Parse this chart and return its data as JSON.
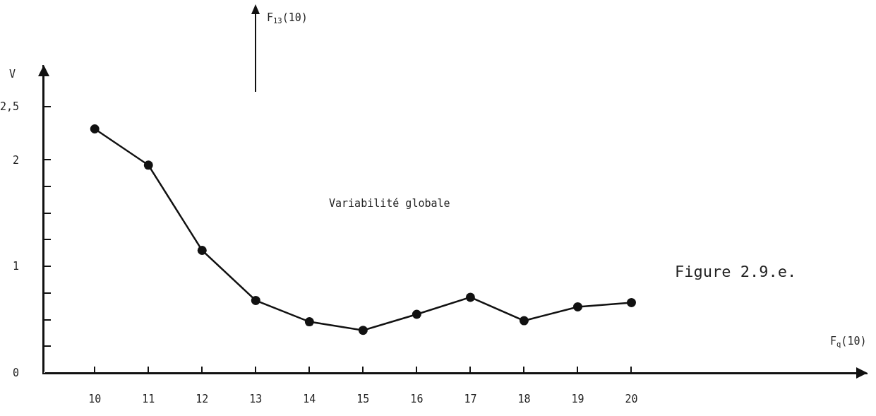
{
  "chart_data": {
    "type": "line",
    "x": [
      10,
      11,
      12,
      13,
      14,
      15,
      16,
      17,
      18,
      19,
      20
    ],
    "values": [
      2.29,
      1.95,
      1.15,
      0.68,
      0.48,
      0.4,
      0.55,
      0.71,
      0.49,
      0.62,
      0.66
    ],
    "color": "#111111",
    "marker": "circle",
    "line_style": "solid",
    "xlabel": "F$_{q}$(10)",
    "ylabel": "V",
    "xlim": [
      9.05,
      24.4
    ],
    "ylim": [
      0,
      2.89
    ],
    "xticks": [
      10,
      11,
      12,
      13,
      14,
      15,
      16,
      17,
      18,
      19,
      20
    ],
    "yticks": [
      0,
      {
        "value": 0.25,
        "label": null
      },
      {
        "value": 0.5,
        "label": null
      },
      {
        "value": 0.75,
        "label": null
      },
      1,
      {
        "value": 1.25,
        "label": null
      },
      {
        "value": 1.5,
        "label": null
      },
      {
        "value": 1.75,
        "label": null
      },
      2,
      {
        "value": 2.5,
        "label": "2,5"
      }
    ],
    "annotations": [
      "F$_{13}$(10)",
      "Variabilité globale",
      "Figure 2.9.e."
    ]
  }
}
